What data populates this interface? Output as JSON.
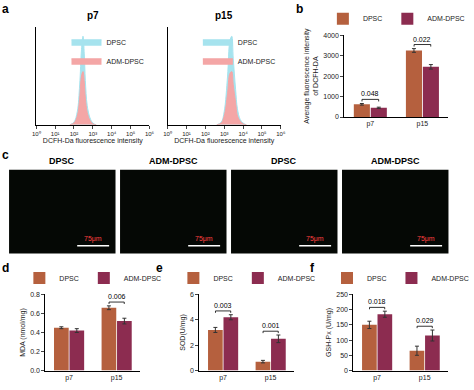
{
  "chart_data": [
    {
      "type": "area",
      "label": "a",
      "title": "p7",
      "x_label": "DCFH-Da fluorescence intensity",
      "log": "x",
      "xlim": [
        1,
        1000000
      ],
      "xticks": [
        {
          "value": 1,
          "label": "10⁰"
        },
        {
          "value": 10,
          "label": "10¹"
        },
        {
          "value": 100,
          "label": "10²"
        },
        {
          "value": 1000,
          "label": "10³"
        },
        {
          "value": 10000,
          "label": "10⁴"
        },
        {
          "value": 100000,
          "label": "10⁵"
        },
        {
          "value": 1000000,
          "label": "10⁶"
        }
      ],
      "ylim": [
        0,
        110
      ],
      "tick_labels": "x",
      "legend": "top-right",
      "series": [
        {
          "name": "DPSC",
          "color": "#a6e3ee",
          "x": [
            60,
            100,
            150,
            200,
            250,
            300,
            350,
            400,
            500,
            700,
            1000,
            1500
          ],
          "values": [
            0,
            3,
            15,
            45,
            85,
            100,
            80,
            50,
            22,
            8,
            2,
            0
          ]
        },
        {
          "name": "ADM-DPSC",
          "color": "#f4a6a6",
          "x": [
            60,
            100,
            150,
            200,
            250,
            300,
            350,
            400,
            500,
            700,
            1000,
            1500
          ],
          "values": [
            0,
            2,
            10,
            30,
            55,
            60,
            48,
            30,
            14,
            5,
            1,
            0
          ]
        }
      ]
    },
    {
      "type": "area",
      "title": "p15",
      "x_label": "DCFH-Da fluorescence intensity",
      "log": "x",
      "xlim": [
        1,
        1000000
      ],
      "xticks": [
        {
          "value": 1,
          "label": "10⁰"
        },
        {
          "value": 10,
          "label": "10¹"
        },
        {
          "value": 100,
          "label": "10²"
        },
        {
          "value": 1000,
          "label": "10³"
        },
        {
          "value": 10000,
          "label": "10⁴"
        },
        {
          "value": 100000,
          "label": "10⁵"
        },
        {
          "value": 1000000,
          "label": "10⁶"
        }
      ],
      "ylim": [
        0,
        110
      ],
      "tick_labels": "x",
      "legend": "top-right",
      "series": [
        {
          "name": "DPSC",
          "color": "#a6e3ee",
          "x": [
            400,
            700,
            1000,
            1500,
            2000,
            2500,
            3000,
            4000,
            5000,
            7000,
            10000,
            15000
          ],
          "values": [
            0,
            3,
            15,
            55,
            95,
            100,
            75,
            40,
            18,
            6,
            2,
            0
          ]
        },
        {
          "name": "ADM-DPSC",
          "color": "#f4a6a6",
          "x": [
            400,
            700,
            1000,
            1500,
            2000,
            2500,
            3000,
            4000,
            5000,
            7000,
            10000,
            15000
          ],
          "values": [
            0,
            2,
            10,
            35,
            58,
            60,
            45,
            25,
            10,
            4,
            1,
            0
          ]
        }
      ]
    },
    {
      "type": "bar",
      "label": "b",
      "y_label": "Average fluorescence intensity\nof DCFH-DA",
      "categories": [
        "p7",
        "p15"
      ],
      "ylim": [
        0,
        4000
      ],
      "yticks": [
        0,
        1000,
        2000,
        3000,
        4000
      ],
      "legend": "top",
      "series": [
        {
          "name": "DPSC",
          "color": "#b5603e",
          "values": [
            620,
            3250
          ],
          "errors": [
            40,
            90
          ]
        },
        {
          "name": "ADM-DPSC",
          "color": "#8c2c50",
          "values": [
            450,
            2450
          ],
          "errors": [
            30,
            110
          ]
        }
      ],
      "annotations": [
        {
          "category": "p7",
          "text": "0.048"
        },
        {
          "category": "p15",
          "text": "0.022"
        }
      ]
    },
    {
      "type": "image",
      "label": "c",
      "panels": [
        "DPSC",
        "ADM-DPSC",
        "DPSC",
        "ADM-DPSC"
      ],
      "scale_bar": "75μm"
    },
    {
      "type": "bar",
      "label": "d",
      "y_label": "MDA (nmol/mg)",
      "categories": [
        "p7",
        "p15"
      ],
      "ylim": [
        0,
        0.8
      ],
      "yticks": [
        {
          "value": 0,
          "label": "0.0"
        },
        0.2,
        0.4,
        0.6,
        0.8
      ],
      "legend": "top",
      "series": [
        {
          "name": "DPSC",
          "color": "#b5603e",
          "values": [
            0.45,
            0.66
          ],
          "errors": [
            0.01,
            0.02
          ]
        },
        {
          "name": "ADM-DPSC",
          "color": "#8c2c50",
          "values": [
            0.42,
            0.52
          ],
          "errors": [
            0.02,
            0.03
          ]
        }
      ],
      "annotations": [
        {
          "category": "p15",
          "text": "0.006"
        }
      ]
    },
    {
      "type": "bar",
      "label": "e",
      "y_label": "SOD(U/mg)",
      "categories": [
        "p7",
        "p15"
      ],
      "ylim": [
        0,
        6
      ],
      "yticks": [
        0,
        2,
        4,
        6
      ],
      "legend": "top",
      "series": [
        {
          "name": "DPSC",
          "color": "#b5603e",
          "values": [
            3.2,
            0.7
          ],
          "errors": [
            0.2,
            0.1
          ]
        },
        {
          "name": "ADM-DPSC",
          "color": "#8c2c50",
          "values": [
            4.2,
            2.5
          ],
          "errors": [
            0.2,
            0.3
          ]
        }
      ],
      "annotations": [
        {
          "category": "p7",
          "text": "0.003"
        },
        {
          "category": "p15",
          "text": "0.001"
        }
      ]
    },
    {
      "type": "bar",
      "label": "f",
      "y_label": "GSH-Px (U/mg)",
      "categories": [
        "p7",
        "p15"
      ],
      "ylim": [
        0,
        250
      ],
      "yticks": [
        0,
        50,
        100,
        150,
        200,
        250
      ],
      "legend": "top",
      "series": [
        {
          "name": "DPSC",
          "color": "#b5603e",
          "values": [
            150,
            65
          ],
          "errors": [
            12,
            15
          ]
        },
        {
          "name": "ADM-DPSC",
          "color": "#8c2c50",
          "values": [
            185,
            115
          ],
          "errors": [
            10,
            18
          ]
        }
      ],
      "annotations": [
        {
          "category": "p7",
          "text": "0.018"
        },
        {
          "category": "p15",
          "text": "0.029"
        }
      ]
    }
  ]
}
